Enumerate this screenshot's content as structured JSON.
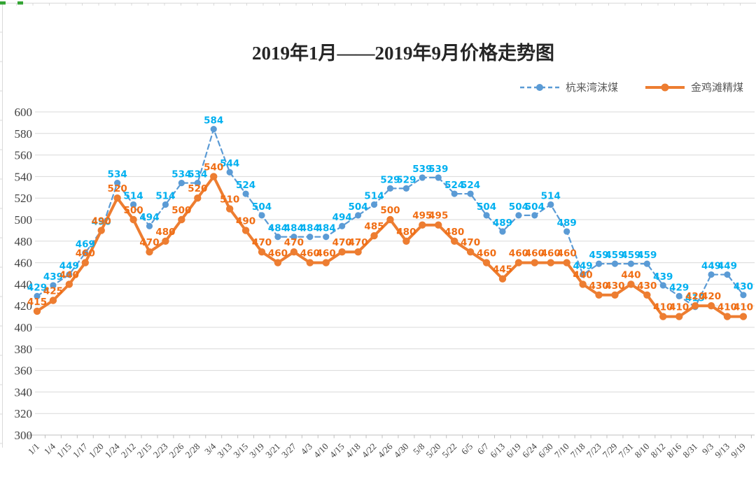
{
  "chart_data": {
    "type": "line",
    "title": "2019年1月——2019年9月价格走势图",
    "categories": [
      "1/1",
      "1/4",
      "1/15",
      "1/17",
      "1/20",
      "1/24",
      "2/12",
      "2/15",
      "2/23",
      "2/26",
      "2/28",
      "3/4",
      "3/13",
      "3/15",
      "3/19",
      "3/21",
      "3/27",
      "4/3",
      "4/10",
      "4/15",
      "4/18",
      "4/22",
      "4/26",
      "4/30",
      "5/8",
      "5/20",
      "5/22",
      "6/5",
      "6/7",
      "6/13",
      "6/19",
      "6/24",
      "6/30",
      "7/10",
      "7/18",
      "7/23",
      "7/29",
      "7/31",
      "8/10",
      "8/12",
      "8/16",
      "8/31",
      "9/3",
      "9/13",
      "9/19"
    ],
    "series": [
      {
        "name": "杭来湾沫煤",
        "style": "dashed",
        "color": "#5B9BD5",
        "label_color": "#00B0F0",
        "values": [
          429,
          439,
          449,
          469,
          490,
          534,
          514,
          494,
          514,
          534,
          534,
          584,
          544,
          524,
          504,
          484,
          484,
          484,
          484,
          494,
          504,
          514,
          529,
          529,
          539,
          539,
          524,
          524,
          504,
          489,
          504,
          504,
          514,
          489,
          449,
          459,
          459,
          459,
          459,
          439,
          429,
          419,
          449,
          449,
          430
        ]
      },
      {
        "name": "金鸡滩精煤",
        "style": "solid",
        "color": "#ED7D31",
        "label_color": "#F06E15",
        "values": [
          415,
          425,
          440,
          460,
          490,
          520,
          500,
          470,
          480,
          500,
          520,
          540,
          510,
          490,
          470,
          460,
          470,
          460,
          460,
          470,
          470,
          485,
          500,
          480,
          495,
          495,
          480,
          470,
          460,
          445,
          460,
          460,
          460,
          460,
          440,
          430,
          430,
          440,
          430,
          410,
          410,
          420,
          420,
          410,
          410
        ]
      }
    ],
    "ylim": [
      300,
      600
    ],
    "yticks": [
      600,
      580,
      560,
      540,
      520,
      500,
      480,
      460,
      440,
      420,
      400,
      380,
      360,
      340,
      320,
      300
    ],
    "grid": true,
    "legend_position": "top-right",
    "data_labels": true,
    "colors": {
      "grid": "#D9D9D9",
      "axis": "#BFBFBF",
      "text": "#404040",
      "frame": "#D9D9D9",
      "accent_green": "#33A433"
    }
  }
}
